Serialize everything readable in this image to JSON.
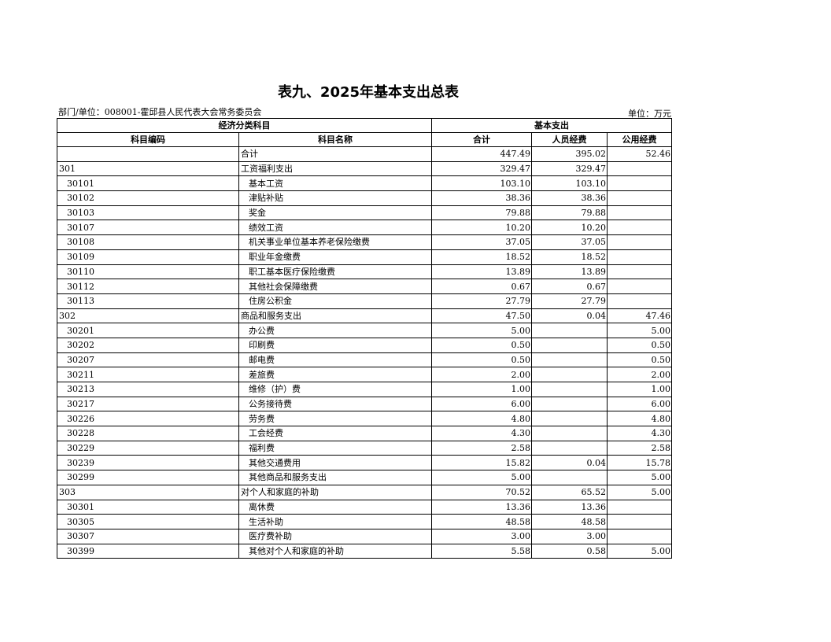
{
  "title": "表九、2025年基本支出总表",
  "department": "部门/单位：008001-霍邱县人民代表大会常务委员会",
  "unit": "单位：万元",
  "header": {
    "group1": "经济分类科目",
    "group2": "基本支出",
    "code": "科目编码",
    "name": "科目名称",
    "total": "合计",
    "personnel": "人员经费",
    "public": "公用经费"
  },
  "rows": [
    {
      "code": "",
      "name": "合计",
      "total": "447.49",
      "personnel": "395.02",
      "public": "52.46",
      "level": 0
    },
    {
      "code": "301",
      "name": "工资福利支出",
      "total": "329.47",
      "personnel": "329.47",
      "public": "",
      "level": 0
    },
    {
      "code": "30101",
      "name": "基本工资",
      "total": "103.10",
      "personnel": "103.10",
      "public": "",
      "level": 1
    },
    {
      "code": "30102",
      "name": "津贴补贴",
      "total": "38.36",
      "personnel": "38.36",
      "public": "",
      "level": 1
    },
    {
      "code": "30103",
      "name": "奖金",
      "total": "79.88",
      "personnel": "79.88",
      "public": "",
      "level": 1
    },
    {
      "code": "30107",
      "name": "绩效工资",
      "total": "10.20",
      "personnel": "10.20",
      "public": "",
      "level": 1
    },
    {
      "code": "30108",
      "name": "机关事业单位基本养老保险缴费",
      "total": "37.05",
      "personnel": "37.05",
      "public": "",
      "level": 1
    },
    {
      "code": "30109",
      "name": "职业年金缴费",
      "total": "18.52",
      "personnel": "18.52",
      "public": "",
      "level": 1
    },
    {
      "code": "30110",
      "name": "职工基本医疗保险缴费",
      "total": "13.89",
      "personnel": "13.89",
      "public": "",
      "level": 1
    },
    {
      "code": "30112",
      "name": "其他社会保障缴费",
      "total": "0.67",
      "personnel": "0.67",
      "public": "",
      "level": 1
    },
    {
      "code": "30113",
      "name": "住房公积金",
      "total": "27.79",
      "personnel": "27.79",
      "public": "",
      "level": 1
    },
    {
      "code": "302",
      "name": "商品和服务支出",
      "total": "47.50",
      "personnel": "0.04",
      "public": "47.46",
      "level": 0
    },
    {
      "code": "30201",
      "name": "办公费",
      "total": "5.00",
      "personnel": "",
      "public": "5.00",
      "level": 1
    },
    {
      "code": "30202",
      "name": "印刷费",
      "total": "0.50",
      "personnel": "",
      "public": "0.50",
      "level": 1
    },
    {
      "code": "30207",
      "name": "邮电费",
      "total": "0.50",
      "personnel": "",
      "public": "0.50",
      "level": 1
    },
    {
      "code": "30211",
      "name": "差旅费",
      "total": "2.00",
      "personnel": "",
      "public": "2.00",
      "level": 1
    },
    {
      "code": "30213",
      "name": "维修（护）费",
      "total": "1.00",
      "personnel": "",
      "public": "1.00",
      "level": 1
    },
    {
      "code": "30217",
      "name": "公务接待费",
      "total": "6.00",
      "personnel": "",
      "public": "6.00",
      "level": 1
    },
    {
      "code": "30226",
      "name": "劳务费",
      "total": "4.80",
      "personnel": "",
      "public": "4.80",
      "level": 1
    },
    {
      "code": "30228",
      "name": "工会经费",
      "total": "4.30",
      "personnel": "",
      "public": "4.30",
      "level": 1
    },
    {
      "code": "30229",
      "name": "福利费",
      "total": "2.58",
      "personnel": "",
      "public": "2.58",
      "level": 1
    },
    {
      "code": "30239",
      "name": "其他交通费用",
      "total": "15.82",
      "personnel": "0.04",
      "public": "15.78",
      "level": 1
    },
    {
      "code": "30299",
      "name": "其他商品和服务支出",
      "total": "5.00",
      "personnel": "",
      "public": "5.00",
      "level": 1
    },
    {
      "code": "303",
      "name": "对个人和家庭的补助",
      "total": "70.52",
      "personnel": "65.52",
      "public": "5.00",
      "level": 0
    },
    {
      "code": "30301",
      "name": "离休费",
      "total": "13.36",
      "personnel": "13.36",
      "public": "",
      "level": 1
    },
    {
      "code": "30305",
      "name": "生活补助",
      "total": "48.58",
      "personnel": "48.58",
      "public": "",
      "level": 1
    },
    {
      "code": "30307",
      "name": "医疗费补助",
      "total": "3.00",
      "personnel": "3.00",
      "public": "",
      "level": 1
    },
    {
      "code": "30399",
      "name": "其他对个人和家庭的补助",
      "total": "5.58",
      "personnel": "0.58",
      "public": "5.00",
      "level": 1
    }
  ]
}
